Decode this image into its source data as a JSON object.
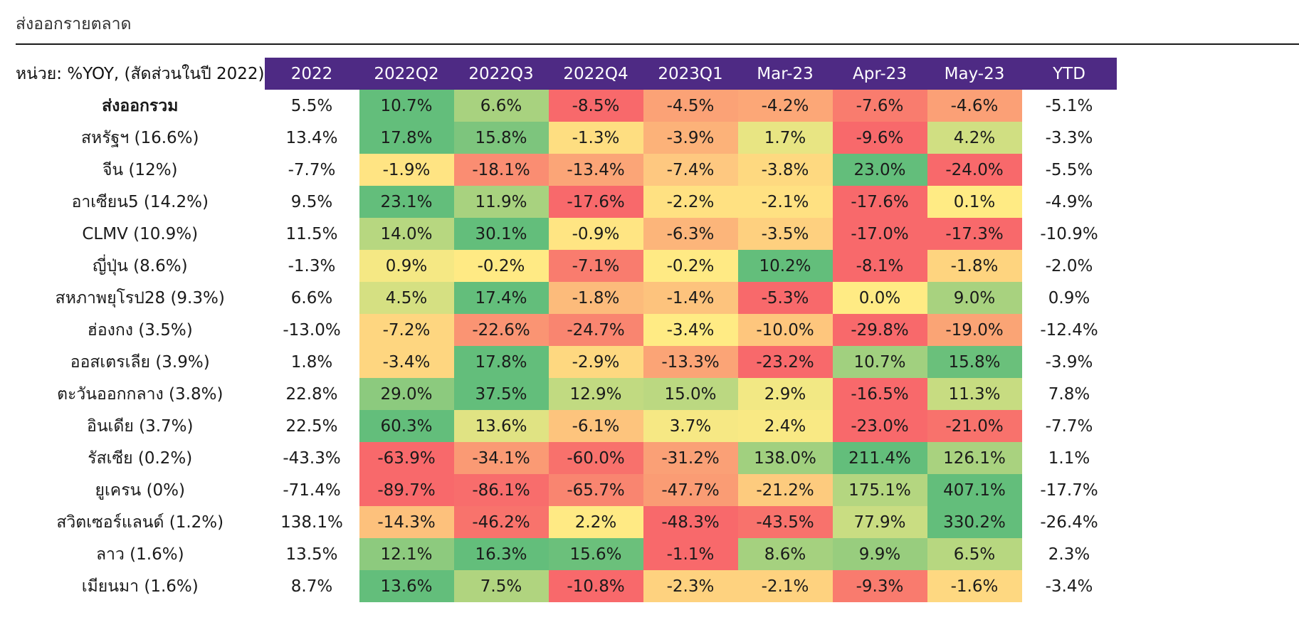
{
  "title": "ส่งออกรายตลาด",
  "unit_label": "หน่วย: %YOY, (สัดส่วนในปี 2022)",
  "chart_data": {
    "type": "table",
    "columns": [
      "2022",
      "2022Q2",
      "2022Q3",
      "2022Q4",
      "2023Q1",
      "Mar-23",
      "Apr-23",
      "May-23",
      "YTD"
    ],
    "rows": [
      {
        "label": "ส่งออกรวม",
        "values": [
          "5.5%",
          "10.7%",
          "6.6%",
          "-8.5%",
          "-4.5%",
          "-4.2%",
          "-7.6%",
          "-4.6%",
          "-5.1%"
        ],
        "colors": [
          "#ffffff",
          "#63be7b",
          "#a8d27f",
          "#f8696b",
          "#fba276",
          "#fca777",
          "#f97c6e",
          "#fba076",
          "#ffffff"
        ]
      },
      {
        "label": "สหรัฐฯ (16.6%)",
        "values": [
          "13.4%",
          "17.8%",
          "15.8%",
          "-1.3%",
          "-3.9%",
          "1.7%",
          "-9.6%",
          "4.2%",
          "-3.3%"
        ],
        "colors": [
          "#ffffff",
          "#63be7b",
          "#7dc57d",
          "#fede81",
          "#fcb279",
          "#e8e583",
          "#f8696b",
          "#d0df82",
          "#ffffff"
        ]
      },
      {
        "label": "จีน (12%)",
        "values": [
          "-7.7%",
          "-1.9%",
          "-18.1%",
          "-13.4%",
          "-7.4%",
          "-3.8%",
          "23.0%",
          "-24.0%",
          "-5.5%"
        ],
        "colors": [
          "#ffffff",
          "#ffe483",
          "#fa8d72",
          "#fba577",
          "#fec880",
          "#fed980",
          "#63be7b",
          "#f8696b",
          "#ffffff"
        ]
      },
      {
        "label": "อาเซียน5 (14.2%)",
        "values": [
          "9.5%",
          "23.1%",
          "11.9%",
          "-17.6%",
          "-2.2%",
          "-2.1%",
          "-17.6%",
          "0.1%",
          "-4.9%"
        ],
        "colors": [
          "#ffffff",
          "#63be7b",
          "#a8d27f",
          "#f8696b",
          "#ffe182",
          "#ffe182",
          "#f8696b",
          "#ffeb84",
          "#ffffff"
        ]
      },
      {
        "label": "CLMV (10.9%)",
        "values": [
          "11.5%",
          "14.0%",
          "30.1%",
          "-0.9%",
          "-6.3%",
          "-3.5%",
          "-17.0%",
          "-17.3%",
          "-10.9%"
        ],
        "colors": [
          "#ffffff",
          "#b7d780",
          "#63be7b",
          "#ffe583",
          "#fcb57a",
          "#fed07f",
          "#f8696b",
          "#f8696b",
          "#ffffff"
        ]
      },
      {
        "label": "ญี่ปุ่น (8.6%)",
        "values": [
          "-1.3%",
          "0.9%",
          "-0.2%",
          "-7.1%",
          "-0.2%",
          "10.2%",
          "-8.1%",
          "-1.8%",
          "-2.0%"
        ],
        "colors": [
          "#ffffff",
          "#f5e884",
          "#ffea84",
          "#f97c6e",
          "#ffea84",
          "#63be7b",
          "#f8696b",
          "#fed47f",
          "#ffffff"
        ]
      },
      {
        "label": "สหภาพยุโรป28 (9.3%)",
        "values": [
          "6.6%",
          "4.5%",
          "17.4%",
          "-1.8%",
          "-1.4%",
          "-5.3%",
          "0.0%",
          "9.0%",
          "0.9%"
        ],
        "colors": [
          "#ffffff",
          "#d5e082",
          "#63be7b",
          "#fcbb7b",
          "#fdc37d",
          "#f8696b",
          "#ffeb84",
          "#a8d27f",
          "#ffffff"
        ]
      },
      {
        "label": "ฮ่องกง (3.5%)",
        "values": [
          "-13.0%",
          "-7.2%",
          "-22.6%",
          "-24.7%",
          "-3.4%",
          "-10.0%",
          "-29.8%",
          "-19.0%",
          "-12.4%"
        ],
        "colors": [
          "#ffffff",
          "#fed680",
          "#fa9473",
          "#f98570",
          "#ffeb84",
          "#fec67d",
          "#f8696b",
          "#faa475",
          "#ffffff"
        ]
      },
      {
        "label": "ออสเตรเลีย (3.9%)",
        "values": [
          "1.8%",
          "-3.4%",
          "17.8%",
          "-2.9%",
          "-13.3%",
          "-23.2%",
          "10.7%",
          "15.8%",
          "-3.9%"
        ],
        "colors": [
          "#ffffff",
          "#fed680",
          "#63be7b",
          "#fed880",
          "#fba476",
          "#f8696b",
          "#a1d07f",
          "#6ac07b",
          "#ffffff"
        ]
      },
      {
        "label": "ตะวันออกกลาง (3.8%)",
        "values": [
          "22.8%",
          "29.0%",
          "37.5%",
          "12.9%",
          "15.0%",
          "2.9%",
          "-16.5%",
          "11.3%",
          "7.8%"
        ],
        "colors": [
          "#ffffff",
          "#8cca7e",
          "#63be7b",
          "#c1da81",
          "#bbd881",
          "#f2e884",
          "#f8696b",
          "#c7dc81",
          "#ffffff"
        ]
      },
      {
        "label": "อินเดีย (3.7%)",
        "values": [
          "22.5%",
          "60.3%",
          "13.6%",
          "-6.1%",
          "3.7%",
          "2.4%",
          "-23.0%",
          "-21.0%",
          "-7.7%"
        ],
        "colors": [
          "#ffffff",
          "#63be7b",
          "#e0e383",
          "#fdc47d",
          "#f6e884",
          "#f9e984",
          "#f8696b",
          "#f8726c",
          "#ffffff"
        ]
      },
      {
        "label": "รัสเซีย (0.2%)",
        "values": [
          "-43.3%",
          "-63.9%",
          "-34.1%",
          "-60.0%",
          "-31.2%",
          "138.0%",
          "211.4%",
          "126.1%",
          "1.1%"
        ],
        "colors": [
          "#ffffff",
          "#f8696b",
          "#fa9a74",
          "#f8716c",
          "#faa076",
          "#a1d07f",
          "#63be7b",
          "#a9d27f",
          "#ffffff"
        ]
      },
      {
        "label": "ยูเครน (0%)",
        "values": [
          "-71.4%",
          "-89.7%",
          "-86.1%",
          "-65.7%",
          "-47.7%",
          "-21.2%",
          "175.1%",
          "407.1%",
          "-17.7%"
        ],
        "colors": [
          "#ffffff",
          "#f8696b",
          "#f86d6c",
          "#f98570",
          "#fa9c74",
          "#fdcb7e",
          "#b4d680",
          "#63be7b",
          "#ffffff"
        ]
      },
      {
        "label": "สวิตเซอร์แลนด์ (1.2%)",
        "values": [
          "138.1%",
          "-14.3%",
          "-46.2%",
          "2.2%",
          "-48.3%",
          "-43.5%",
          "77.9%",
          "330.2%",
          "-26.4%"
        ],
        "colors": [
          "#ffffff",
          "#fdc17c",
          "#f8736c",
          "#ffea84",
          "#f8696b",
          "#f8726c",
          "#c9dd82",
          "#63be7b",
          "#ffffff"
        ]
      },
      {
        "label": "ลาว (1.6%)",
        "values": [
          "13.5%",
          "12.1%",
          "16.3%",
          "15.6%",
          "-1.1%",
          "8.6%",
          "9.9%",
          "6.5%",
          "2.3%"
        ],
        "colors": [
          "#ffffff",
          "#8dca7e",
          "#63be7b",
          "#6bc07b",
          "#f8696b",
          "#a5d17f",
          "#98cd7e",
          "#b7d780",
          "#ffffff"
        ]
      },
      {
        "label": "เมียนมา (1.6%)",
        "values": [
          "8.7%",
          "13.6%",
          "7.5%",
          "-10.8%",
          "-2.3%",
          "-2.1%",
          "-9.3%",
          "-1.6%",
          "-3.4%"
        ],
        "colors": [
          "#ffffff",
          "#63be7b",
          "#b0d47f",
          "#f8696b",
          "#fed27f",
          "#fed27f",
          "#f97b6e",
          "#fed881",
          "#ffffff"
        ]
      }
    ]
  }
}
